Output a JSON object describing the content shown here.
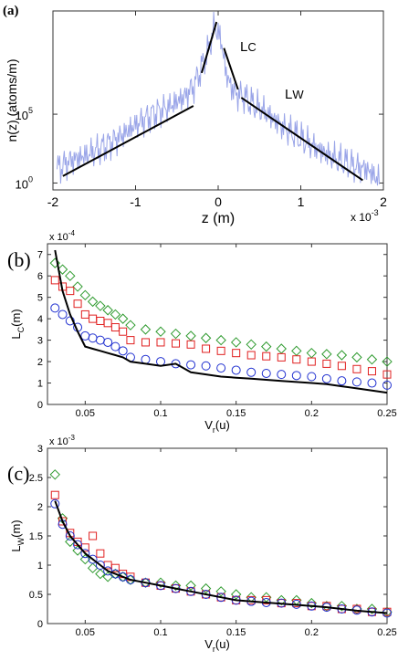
{
  "chart_data": [
    {
      "panel": "(a)",
      "type": "line",
      "xlabel": "z (m)",
      "ylabel": "n(z) (atoms/m)",
      "x_multiplier": "x 10",
      "x_multiplier_exp": "-3",
      "xlim": [
        -2,
        2
      ],
      "ylog": true,
      "xticks": [
        "-2",
        "-1",
        "0",
        "1",
        "2"
      ],
      "yticks": [
        {
          "base": "10",
          "exp": "0",
          "value": 0
        },
        {
          "base": "10",
          "exp": "5",
          "value": 5
        }
      ],
      "annotations": [
        {
          "main": "L",
          "sub": "C"
        },
        {
          "main": "L",
          "sub": "W"
        }
      ],
      "series": [
        {
          "color": "#9aa5e8",
          "x": [
            -1.95,
            -1.9,
            -1.8,
            -1.6,
            -1.4,
            -1.2,
            -1.0,
            -0.8,
            -0.6,
            -0.4,
            -0.3,
            -0.2,
            -0.1,
            -0.05,
            0.0,
            0.05,
            0.1,
            0.2,
            0.3,
            0.4,
            0.6,
            0.8,
            1.0,
            1.2,
            1.4,
            1.6,
            1.8,
            1.95
          ],
          "y": [
            1.0,
            1.2,
            1.6,
            2.0,
            2.6,
            3.3,
            4.2,
            5.0,
            5.5,
            6.3,
            7.0,
            8.4,
            10.0,
            11.3,
            11.0,
            9.9,
            7.8,
            6.5,
            6.3,
            5.8,
            5.0,
            4.0,
            3.2,
            2.5,
            1.8,
            1.3,
            1.0,
            0.2
          ]
        },
        {
          "color": "#000000",
          "x": [
            -1.88,
            -0.3
          ],
          "y": [
            0.5,
            5.6
          ]
        },
        {
          "color": "#000000",
          "x": [
            -0.2,
            -0.02
          ],
          "y": [
            8.0,
            11.7
          ]
        },
        {
          "color": "#000000",
          "x": [
            0.07,
            0.24
          ],
          "y": [
            9.8,
            6.8
          ]
        },
        {
          "color": "#000000",
          "x": [
            0.28,
            1.75
          ],
          "y": [
            6.2,
            0.2
          ]
        }
      ]
    },
    {
      "panel": "(b)",
      "type": "scatter",
      "xlabel": "V",
      "xlabel_sub": "r",
      "xlabel_unit": "(u)",
      "ylabel": "L",
      "ylabel_sub": "C",
      "ylabel_unit": "(m)",
      "y_multiplier": "x 10",
      "y_multiplier_exp": "-4",
      "xlim": [
        0.025,
        0.25
      ],
      "ylim": [
        0,
        7.5
      ],
      "xticks": [
        "0.05",
        "0.1",
        "0.15",
        "0.2",
        "0.25"
      ],
      "xtick_values": [
        0.05,
        0.1,
        0.15,
        0.2,
        0.25
      ],
      "yticks": [
        "0",
        "1",
        "2",
        "3",
        "4",
        "5",
        "6",
        "7"
      ],
      "ytick_values": [
        0,
        1,
        2,
        3,
        4,
        5,
        6,
        7
      ],
      "series": [
        {
          "marker": "diamond",
          "color": "#2e9a2e",
          "x": [
            0.03,
            0.035,
            0.04,
            0.045,
            0.05,
            0.055,
            0.06,
            0.065,
            0.07,
            0.075,
            0.08,
            0.09,
            0.1,
            0.11,
            0.12,
            0.13,
            0.14,
            0.15,
            0.16,
            0.17,
            0.18,
            0.19,
            0.2,
            0.21,
            0.22,
            0.23,
            0.24,
            0.25
          ],
          "y": [
            6.6,
            6.3,
            6.0,
            5.5,
            5.1,
            4.8,
            4.6,
            4.4,
            4.2,
            4.0,
            3.7,
            3.5,
            3.4,
            3.3,
            3.2,
            3.1,
            3.0,
            2.9,
            2.8,
            2.7,
            2.6,
            2.5,
            2.4,
            2.35,
            2.3,
            2.2,
            2.1,
            2.0
          ]
        },
        {
          "marker": "square",
          "color": "#e02020",
          "x": [
            0.03,
            0.035,
            0.04,
            0.045,
            0.05,
            0.055,
            0.06,
            0.065,
            0.07,
            0.075,
            0.08,
            0.09,
            0.1,
            0.11,
            0.12,
            0.13,
            0.14,
            0.15,
            0.16,
            0.17,
            0.18,
            0.19,
            0.2,
            0.21,
            0.22,
            0.23,
            0.24,
            0.25
          ],
          "y": [
            5.8,
            5.5,
            5.3,
            4.7,
            4.2,
            4.0,
            3.9,
            3.8,
            3.6,
            3.4,
            3.0,
            2.9,
            2.9,
            2.85,
            2.8,
            2.6,
            2.5,
            2.4,
            2.3,
            2.25,
            2.2,
            2.1,
            2.0,
            1.9,
            1.8,
            1.65,
            1.55,
            1.4
          ]
        },
        {
          "marker": "circle",
          "color": "#2030d0",
          "x": [
            0.03,
            0.035,
            0.04,
            0.045,
            0.05,
            0.055,
            0.06,
            0.065,
            0.07,
            0.075,
            0.08,
            0.09,
            0.1,
            0.11,
            0.12,
            0.13,
            0.14,
            0.15,
            0.16,
            0.17,
            0.18,
            0.19,
            0.2,
            0.21,
            0.22,
            0.23,
            0.24,
            0.25
          ],
          "y": [
            4.5,
            4.2,
            3.9,
            3.6,
            3.2,
            3.1,
            3.0,
            2.9,
            2.7,
            2.5,
            2.2,
            2.1,
            2.0,
            1.9,
            1.85,
            1.8,
            1.7,
            1.6,
            1.5,
            1.45,
            1.4,
            1.35,
            1.3,
            1.2,
            1.1,
            1.05,
            1.0,
            0.9
          ]
        },
        {
          "marker": "line",
          "color": "#000000",
          "x": [
            0.03,
            0.035,
            0.04,
            0.045,
            0.05,
            0.055,
            0.06,
            0.065,
            0.07,
            0.075,
            0.08,
            0.09,
            0.1,
            0.11,
            0.12,
            0.13,
            0.14,
            0.15,
            0.16,
            0.17,
            0.18,
            0.19,
            0.2,
            0.21,
            0.22,
            0.23,
            0.24,
            0.25
          ],
          "y": [
            7.2,
            5.3,
            4.2,
            3.4,
            2.7,
            2.6,
            2.5,
            2.4,
            2.3,
            2.2,
            2.0,
            1.9,
            1.8,
            1.9,
            1.5,
            1.4,
            1.3,
            1.25,
            1.2,
            1.15,
            1.1,
            1.05,
            1.0,
            0.95,
            0.85,
            0.75,
            0.65,
            0.55
          ]
        }
      ]
    },
    {
      "panel": "(c)",
      "type": "scatter",
      "xlabel": "V",
      "xlabel_sub": "r",
      "xlabel_unit": "(u)",
      "ylabel": "L",
      "ylabel_sub": "W",
      "ylabel_unit": "(m)",
      "y_multiplier": "x 10",
      "y_multiplier_exp": "-3",
      "xlim": [
        0.025,
        0.25
      ],
      "ylim": [
        0,
        3
      ],
      "xticks": [
        "0.05",
        "0.1",
        "0.15",
        "0.2",
        "0.25"
      ],
      "xtick_values": [
        0.05,
        0.1,
        0.15,
        0.2,
        0.25
      ],
      "yticks": [
        "0",
        "0.5",
        "1",
        "1.5",
        "2",
        "2.5",
        "3"
      ],
      "ytick_values": [
        0,
        0.5,
        1,
        1.5,
        2,
        2.5,
        3
      ],
      "series": [
        {
          "marker": "diamond",
          "color": "#2e9a2e",
          "x": [
            0.03,
            0.035,
            0.04,
            0.045,
            0.05,
            0.055,
            0.06,
            0.065,
            0.07,
            0.075,
            0.08,
            0.09,
            0.1,
            0.11,
            0.12,
            0.13,
            0.14,
            0.15,
            0.16,
            0.17,
            0.18,
            0.19,
            0.2,
            0.21,
            0.22,
            0.23,
            0.24,
            0.25
          ],
          "y": [
            2.55,
            1.8,
            1.4,
            1.25,
            1.1,
            0.95,
            0.85,
            0.8,
            0.85,
            0.8,
            0.75,
            0.7,
            0.7,
            0.65,
            0.65,
            0.6,
            0.55,
            0.5,
            0.45,
            0.45,
            0.4,
            0.4,
            0.35,
            0.3,
            0.3,
            0.25,
            0.25,
            0.2
          ]
        },
        {
          "marker": "square",
          "color": "#e02020",
          "x": [
            0.03,
            0.035,
            0.04,
            0.045,
            0.05,
            0.055,
            0.06,
            0.065,
            0.07,
            0.075,
            0.08,
            0.09,
            0.1,
            0.11,
            0.12,
            0.13,
            0.14,
            0.15,
            0.16,
            0.17,
            0.18,
            0.19,
            0.2,
            0.21,
            0.22,
            0.23,
            0.24,
            0.25
          ],
          "y": [
            2.2,
            1.75,
            1.55,
            1.4,
            1.3,
            1.5,
            1.2,
            1.0,
            0.95,
            0.85,
            0.8,
            0.7,
            0.65,
            0.6,
            0.55,
            0.5,
            0.45,
            0.4,
            0.4,
            0.4,
            0.35,
            0.35,
            0.3,
            0.3,
            0.25,
            0.25,
            0.2,
            0.2
          ]
        },
        {
          "marker": "circle",
          "color": "#2030d0",
          "x": [
            0.03,
            0.035,
            0.04,
            0.045,
            0.05,
            0.055,
            0.06,
            0.065,
            0.07,
            0.075,
            0.08,
            0.09,
            0.1,
            0.11,
            0.12,
            0.13,
            0.14,
            0.15,
            0.16,
            0.17,
            0.18,
            0.19,
            0.2,
            0.21,
            0.22,
            0.23,
            0.24,
            0.25
          ],
          "y": [
            2.05,
            1.7,
            1.5,
            1.35,
            1.2,
            1.1,
            1.0,
            0.9,
            0.85,
            0.8,
            0.75,
            0.7,
            0.65,
            0.6,
            0.55,
            0.5,
            0.45,
            0.4,
            0.38,
            0.36,
            0.35,
            0.33,
            0.3,
            0.28,
            0.25,
            0.23,
            0.2,
            0.18
          ]
        },
        {
          "marker": "line",
          "color": "#000000",
          "x": [
            0.03,
            0.035,
            0.04,
            0.045,
            0.05,
            0.055,
            0.06,
            0.065,
            0.07,
            0.075,
            0.08,
            0.09,
            0.1,
            0.11,
            0.12,
            0.13,
            0.14,
            0.15,
            0.16,
            0.17,
            0.18,
            0.19,
            0.2,
            0.21,
            0.22,
            0.23,
            0.24,
            0.25
          ],
          "y": [
            2.1,
            1.75,
            1.5,
            1.35,
            1.2,
            1.1,
            1.0,
            0.9,
            0.85,
            0.8,
            0.75,
            0.7,
            0.65,
            0.6,
            0.55,
            0.5,
            0.45,
            0.4,
            0.38,
            0.36,
            0.34,
            0.32,
            0.3,
            0.28,
            0.25,
            0.22,
            0.2,
            0.18
          ]
        }
      ]
    }
  ]
}
